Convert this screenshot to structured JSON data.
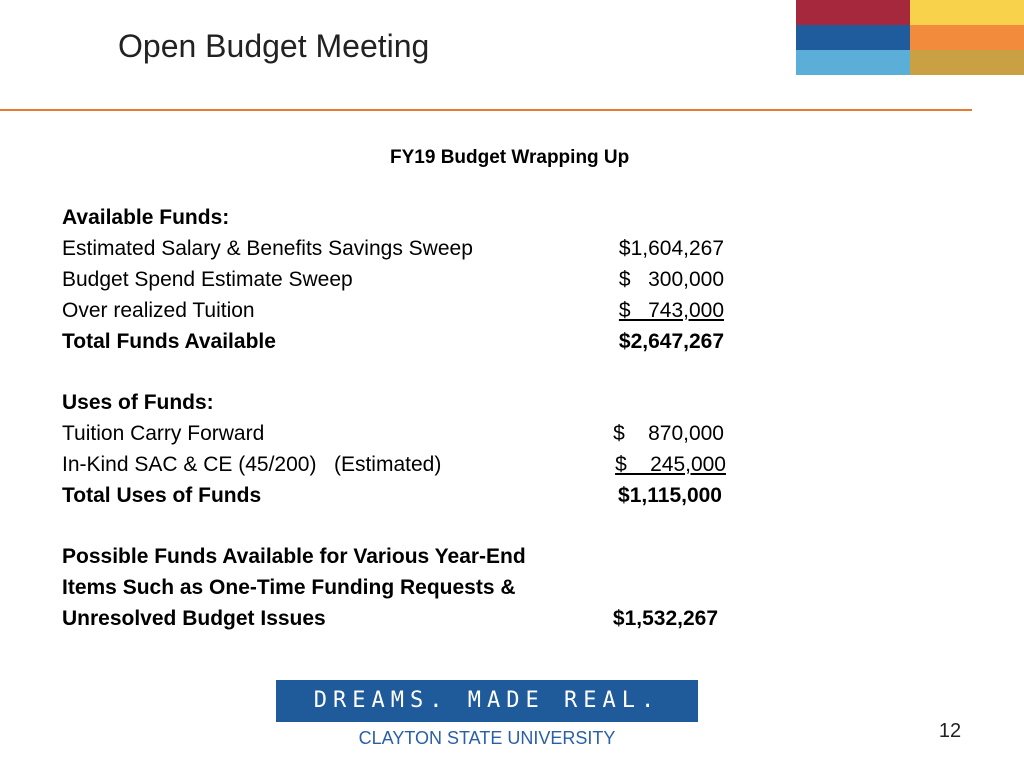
{
  "header": {
    "title": "Open Budget Meeting"
  },
  "subtitle": "FY19 Budget Wrapping Up",
  "sections": [
    {
      "heading": "Available Funds:",
      "rows": [
        {
          "label": "Estimated Salary & Benefits Savings Sweep",
          "amount": "$1,604,267"
        },
        {
          "label": "Budget Spend Estimate Sweep",
          "amount": "$   300,000"
        },
        {
          "label": "Over realized Tuition",
          "amount": "$   743,000"
        }
      ],
      "total": {
        "label": "Total Funds Available",
        "amount": "$2,647,267"
      }
    },
    {
      "heading": "Uses of Funds:",
      "rows": [
        {
          "label": "Tuition Carry Forward",
          "amount": "$    870,000"
        },
        {
          "label": "In-Kind SAC & CE (45/200)   (Estimated)",
          "amount": "$    245,000"
        }
      ],
      "total": {
        "label": "Total Uses of Funds",
        "amount": "$1,115,000"
      }
    }
  ],
  "closing": {
    "lines": [
      "Possible Funds Available for Various Year-End",
      "Items Such as One-Time Funding Requests &",
      "Unresolved Budget Issues"
    ],
    "amount": "$1,532,267"
  },
  "logo": {
    "tagline": "DREAMS. MADE REAL.",
    "name": "CLAYTON STATE UNIVERSITY"
  },
  "page_number": 12
}
